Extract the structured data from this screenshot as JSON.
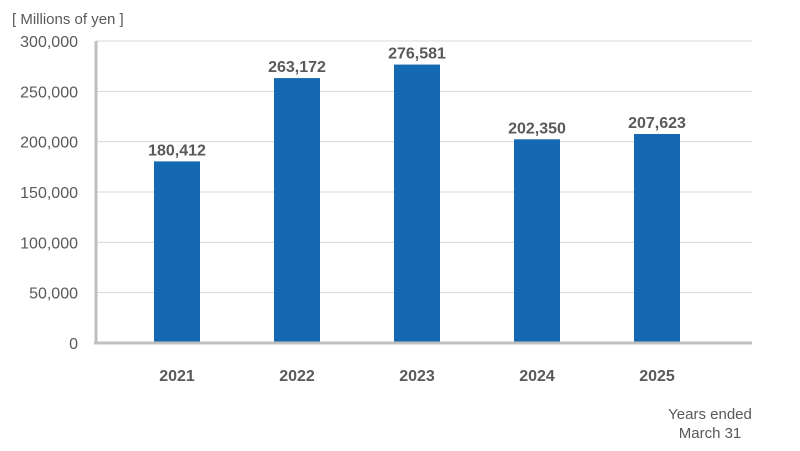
{
  "chart_data": {
    "type": "bar",
    "unit_label": "[ Millions of yen ]",
    "categories": [
      "2021",
      "2022",
      "2023",
      "2024",
      "2025"
    ],
    "values": [
      180412,
      263172,
      276581,
      202350,
      207623
    ],
    "value_labels": [
      "180,412",
      "263,172",
      "276,581",
      "202,350",
      "207,623"
    ],
    "y_ticks": [
      0,
      50000,
      100000,
      150000,
      200000,
      250000,
      300000
    ],
    "y_tick_labels": [
      "0",
      "50,000",
      "100,000",
      "150,000",
      "200,000",
      "250,000",
      "300,000"
    ],
    "ylim": [
      0,
      300000
    ],
    "xlabel_line1": "Years ended",
    "xlabel_line2": "March 31",
    "grid": true,
    "colors": {
      "bar": "#1469b2",
      "grid": "#d9d9d9",
      "axis": "#bfbfbf"
    }
  }
}
